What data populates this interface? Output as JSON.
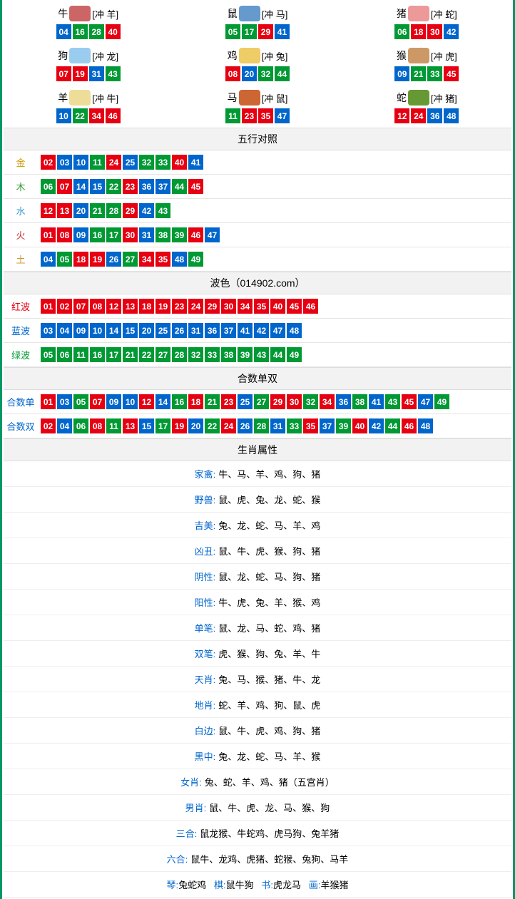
{
  "colors": {
    "red": "#e60012",
    "blue": "#0066cc",
    "green": "#009933",
    "gold": "#cc9900",
    "wood": "#339933",
    "water": "#3399cc",
    "fire": "#cc3333",
    "earth": "#cc9933",
    "redText": "#e60012",
    "blueText": "#0066cc",
    "greenText": "#009933"
  },
  "zodiac": [
    {
      "name": "牛",
      "vs": "[冲 羊]",
      "iconColor": "#cc6666",
      "balls": [
        {
          "n": "04",
          "c": "blue"
        },
        {
          "n": "16",
          "c": "green"
        },
        {
          "n": "28",
          "c": "green"
        },
        {
          "n": "40",
          "c": "red"
        }
      ]
    },
    {
      "name": "鼠",
      "vs": "[冲 马]",
      "iconColor": "#6699cc",
      "balls": [
        {
          "n": "05",
          "c": "green"
        },
        {
          "n": "17",
          "c": "green"
        },
        {
          "n": "29",
          "c": "red"
        },
        {
          "n": "41",
          "c": "blue"
        }
      ]
    },
    {
      "name": "猪",
      "vs": "[冲 蛇]",
      "iconColor": "#ee9999",
      "balls": [
        {
          "n": "06",
          "c": "green"
        },
        {
          "n": "18",
          "c": "red"
        },
        {
          "n": "30",
          "c": "red"
        },
        {
          "n": "42",
          "c": "blue"
        }
      ]
    },
    {
      "name": "狗",
      "vs": "[冲 龙]",
      "iconColor": "#99ccee",
      "balls": [
        {
          "n": "07",
          "c": "red"
        },
        {
          "n": "19",
          "c": "red"
        },
        {
          "n": "31",
          "c": "blue"
        },
        {
          "n": "43",
          "c": "green"
        }
      ]
    },
    {
      "name": "鸡",
      "vs": "[冲 兔]",
      "iconColor": "#eecc66",
      "balls": [
        {
          "n": "08",
          "c": "red"
        },
        {
          "n": "20",
          "c": "blue"
        },
        {
          "n": "32",
          "c": "green"
        },
        {
          "n": "44",
          "c": "green"
        }
      ]
    },
    {
      "name": "猴",
      "vs": "[冲 虎]",
      "iconColor": "#cc9966",
      "balls": [
        {
          "n": "09",
          "c": "blue"
        },
        {
          "n": "21",
          "c": "green"
        },
        {
          "n": "33",
          "c": "green"
        },
        {
          "n": "45",
          "c": "red"
        }
      ]
    },
    {
      "name": "羊",
      "vs": "[冲 牛]",
      "iconColor": "#eedd99",
      "balls": [
        {
          "n": "10",
          "c": "blue"
        },
        {
          "n": "22",
          "c": "green"
        },
        {
          "n": "34",
          "c": "red"
        },
        {
          "n": "46",
          "c": "red"
        }
      ]
    },
    {
      "name": "马",
      "vs": "[冲 鼠]",
      "iconColor": "#cc6633",
      "balls": [
        {
          "n": "11",
          "c": "green"
        },
        {
          "n": "23",
          "c": "red"
        },
        {
          "n": "35",
          "c": "red"
        },
        {
          "n": "47",
          "c": "blue"
        }
      ]
    },
    {
      "name": "蛇",
      "vs": "[冲 猪]",
      "iconColor": "#669933",
      "balls": [
        {
          "n": "12",
          "c": "red"
        },
        {
          "n": "24",
          "c": "red"
        },
        {
          "n": "36",
          "c": "blue"
        },
        {
          "n": "48",
          "c": "blue"
        }
      ]
    }
  ],
  "headers": {
    "wuxing": "五行对照",
    "bose": "波色（014902.com）",
    "heshu": "合数单双",
    "attr": "生肖属性"
  },
  "wuxing": [
    {
      "label": "金",
      "labelColor": "#cc9900",
      "balls": [
        {
          "n": "02",
          "c": "red"
        },
        {
          "n": "03",
          "c": "blue"
        },
        {
          "n": "10",
          "c": "blue"
        },
        {
          "n": "11",
          "c": "green"
        },
        {
          "n": "24",
          "c": "red"
        },
        {
          "n": "25",
          "c": "blue"
        },
        {
          "n": "32",
          "c": "green"
        },
        {
          "n": "33",
          "c": "green"
        },
        {
          "n": "40",
          "c": "red"
        },
        {
          "n": "41",
          "c": "blue"
        }
      ]
    },
    {
      "label": "木",
      "labelColor": "#339933",
      "balls": [
        {
          "n": "06",
          "c": "green"
        },
        {
          "n": "07",
          "c": "red"
        },
        {
          "n": "14",
          "c": "blue"
        },
        {
          "n": "15",
          "c": "blue"
        },
        {
          "n": "22",
          "c": "green"
        },
        {
          "n": "23",
          "c": "red"
        },
        {
          "n": "36",
          "c": "blue"
        },
        {
          "n": "37",
          "c": "blue"
        },
        {
          "n": "44",
          "c": "green"
        },
        {
          "n": "45",
          "c": "red"
        }
      ]
    },
    {
      "label": "水",
      "labelColor": "#3399cc",
      "balls": [
        {
          "n": "12",
          "c": "red"
        },
        {
          "n": "13",
          "c": "red"
        },
        {
          "n": "20",
          "c": "blue"
        },
        {
          "n": "21",
          "c": "green"
        },
        {
          "n": "28",
          "c": "green"
        },
        {
          "n": "29",
          "c": "red"
        },
        {
          "n": "42",
          "c": "blue"
        },
        {
          "n": "43",
          "c": "green"
        }
      ]
    },
    {
      "label": "火",
      "labelColor": "#cc3333",
      "balls": [
        {
          "n": "01",
          "c": "red"
        },
        {
          "n": "08",
          "c": "red"
        },
        {
          "n": "09",
          "c": "blue"
        },
        {
          "n": "16",
          "c": "green"
        },
        {
          "n": "17",
          "c": "green"
        },
        {
          "n": "30",
          "c": "red"
        },
        {
          "n": "31",
          "c": "blue"
        },
        {
          "n": "38",
          "c": "green"
        },
        {
          "n": "39",
          "c": "green"
        },
        {
          "n": "46",
          "c": "red"
        },
        {
          "n": "47",
          "c": "blue"
        }
      ]
    },
    {
      "label": "土",
      "labelColor": "#cc9933",
      "balls": [
        {
          "n": "04",
          "c": "blue"
        },
        {
          "n": "05",
          "c": "green"
        },
        {
          "n": "18",
          "c": "red"
        },
        {
          "n": "19",
          "c": "red"
        },
        {
          "n": "26",
          "c": "blue"
        },
        {
          "n": "27",
          "c": "green"
        },
        {
          "n": "34",
          "c": "red"
        },
        {
          "n": "35",
          "c": "red"
        },
        {
          "n": "48",
          "c": "blue"
        },
        {
          "n": "49",
          "c": "green"
        }
      ]
    }
  ],
  "bose": [
    {
      "label": "红波",
      "labelColor": "#e60012",
      "balls": [
        {
          "n": "01",
          "c": "red"
        },
        {
          "n": "02",
          "c": "red"
        },
        {
          "n": "07",
          "c": "red"
        },
        {
          "n": "08",
          "c": "red"
        },
        {
          "n": "12",
          "c": "red"
        },
        {
          "n": "13",
          "c": "red"
        },
        {
          "n": "18",
          "c": "red"
        },
        {
          "n": "19",
          "c": "red"
        },
        {
          "n": "23",
          "c": "red"
        },
        {
          "n": "24",
          "c": "red"
        },
        {
          "n": "29",
          "c": "red"
        },
        {
          "n": "30",
          "c": "red"
        },
        {
          "n": "34",
          "c": "red"
        },
        {
          "n": "35",
          "c": "red"
        },
        {
          "n": "40",
          "c": "red"
        },
        {
          "n": "45",
          "c": "red"
        },
        {
          "n": "46",
          "c": "red"
        }
      ]
    },
    {
      "label": "蓝波",
      "labelColor": "#0066cc",
      "balls": [
        {
          "n": "03",
          "c": "blue"
        },
        {
          "n": "04",
          "c": "blue"
        },
        {
          "n": "09",
          "c": "blue"
        },
        {
          "n": "10",
          "c": "blue"
        },
        {
          "n": "14",
          "c": "blue"
        },
        {
          "n": "15",
          "c": "blue"
        },
        {
          "n": "20",
          "c": "blue"
        },
        {
          "n": "25",
          "c": "blue"
        },
        {
          "n": "26",
          "c": "blue"
        },
        {
          "n": "31",
          "c": "blue"
        },
        {
          "n": "36",
          "c": "blue"
        },
        {
          "n": "37",
          "c": "blue"
        },
        {
          "n": "41",
          "c": "blue"
        },
        {
          "n": "42",
          "c": "blue"
        },
        {
          "n": "47",
          "c": "blue"
        },
        {
          "n": "48",
          "c": "blue"
        }
      ]
    },
    {
      "label": "绿波",
      "labelColor": "#009933",
      "balls": [
        {
          "n": "05",
          "c": "green"
        },
        {
          "n": "06",
          "c": "green"
        },
        {
          "n": "11",
          "c": "green"
        },
        {
          "n": "16",
          "c": "green"
        },
        {
          "n": "17",
          "c": "green"
        },
        {
          "n": "21",
          "c": "green"
        },
        {
          "n": "22",
          "c": "green"
        },
        {
          "n": "27",
          "c": "green"
        },
        {
          "n": "28",
          "c": "green"
        },
        {
          "n": "32",
          "c": "green"
        },
        {
          "n": "33",
          "c": "green"
        },
        {
          "n": "38",
          "c": "green"
        },
        {
          "n": "39",
          "c": "green"
        },
        {
          "n": "43",
          "c": "green"
        },
        {
          "n": "44",
          "c": "green"
        },
        {
          "n": "49",
          "c": "green"
        }
      ]
    }
  ],
  "heshu": [
    {
      "label": "合数单",
      "labelColor": "#0066cc",
      "balls": [
        {
          "n": "01",
          "c": "red"
        },
        {
          "n": "03",
          "c": "blue"
        },
        {
          "n": "05",
          "c": "green"
        },
        {
          "n": "07",
          "c": "red"
        },
        {
          "n": "09",
          "c": "blue"
        },
        {
          "n": "10",
          "c": "blue"
        },
        {
          "n": "12",
          "c": "red"
        },
        {
          "n": "14",
          "c": "blue"
        },
        {
          "n": "16",
          "c": "green"
        },
        {
          "n": "18",
          "c": "red"
        },
        {
          "n": "21",
          "c": "green"
        },
        {
          "n": "23",
          "c": "red"
        },
        {
          "n": "25",
          "c": "blue"
        },
        {
          "n": "27",
          "c": "green"
        },
        {
          "n": "29",
          "c": "red"
        },
        {
          "n": "30",
          "c": "red"
        },
        {
          "n": "32",
          "c": "green"
        },
        {
          "n": "34",
          "c": "red"
        },
        {
          "n": "36",
          "c": "blue"
        },
        {
          "n": "38",
          "c": "green"
        },
        {
          "n": "41",
          "c": "blue"
        },
        {
          "n": "43",
          "c": "green"
        },
        {
          "n": "45",
          "c": "red"
        },
        {
          "n": "47",
          "c": "blue"
        },
        {
          "n": "49",
          "c": "green"
        }
      ]
    },
    {
      "label": "合数双",
      "labelColor": "#0066cc",
      "balls": [
        {
          "n": "02",
          "c": "red"
        },
        {
          "n": "04",
          "c": "blue"
        },
        {
          "n": "06",
          "c": "green"
        },
        {
          "n": "08",
          "c": "red"
        },
        {
          "n": "11",
          "c": "green"
        },
        {
          "n": "13",
          "c": "red"
        },
        {
          "n": "15",
          "c": "blue"
        },
        {
          "n": "17",
          "c": "green"
        },
        {
          "n": "19",
          "c": "red"
        },
        {
          "n": "20",
          "c": "blue"
        },
        {
          "n": "22",
          "c": "green"
        },
        {
          "n": "24",
          "c": "red"
        },
        {
          "n": "26",
          "c": "blue"
        },
        {
          "n": "28",
          "c": "green"
        },
        {
          "n": "31",
          "c": "blue"
        },
        {
          "n": "33",
          "c": "green"
        },
        {
          "n": "35",
          "c": "red"
        },
        {
          "n": "37",
          "c": "blue"
        },
        {
          "n": "39",
          "c": "green"
        },
        {
          "n": "40",
          "c": "red"
        },
        {
          "n": "42",
          "c": "blue"
        },
        {
          "n": "44",
          "c": "green"
        },
        {
          "n": "46",
          "c": "red"
        },
        {
          "n": "48",
          "c": "blue"
        }
      ]
    }
  ],
  "attrs": [
    {
      "label": "家禽:",
      "labelColor": "#0066cc",
      "text": "牛、马、羊、鸡、狗、猪"
    },
    {
      "label": "野兽:",
      "labelColor": "#0066cc",
      "text": "鼠、虎、兔、龙、蛇、猴"
    },
    {
      "label": "吉美:",
      "labelColor": "#0066cc",
      "text": "兔、龙、蛇、马、羊、鸡"
    },
    {
      "label": "凶丑:",
      "labelColor": "#0066cc",
      "text": "鼠、牛、虎、猴、狗、猪"
    },
    {
      "label": "阴性:",
      "labelColor": "#0066cc",
      "text": "鼠、龙、蛇、马、狗、猪"
    },
    {
      "label": "阳性:",
      "labelColor": "#0066cc",
      "text": "牛、虎、兔、羊、猴、鸡"
    },
    {
      "label": "单笔:",
      "labelColor": "#0066cc",
      "text": "鼠、龙、马、蛇、鸡、猪"
    },
    {
      "label": "双笔:",
      "labelColor": "#0066cc",
      "text": "虎、猴、狗、兔、羊、牛"
    },
    {
      "label": "天肖:",
      "labelColor": "#0066cc",
      "text": "兔、马、猴、猪、牛、龙"
    },
    {
      "label": "地肖:",
      "labelColor": "#0066cc",
      "text": "蛇、羊、鸡、狗、鼠、虎"
    },
    {
      "label": "白边:",
      "labelColor": "#0066cc",
      "text": "鼠、牛、虎、鸡、狗、猪"
    },
    {
      "label": "黑中:",
      "labelColor": "#0066cc",
      "text": "兔、龙、蛇、马、羊、猴"
    },
    {
      "label": "女肖:",
      "labelColor": "#0066cc",
      "text": "兔、蛇、羊、鸡、猪（五宫肖）"
    },
    {
      "label": "男肖:",
      "labelColor": "#0066cc",
      "text": "鼠、牛、虎、龙、马、猴、狗"
    },
    {
      "label": "三合:",
      "labelColor": "#0066cc",
      "text": "鼠龙猴、牛蛇鸡、虎马狗、兔羊猪"
    },
    {
      "label": "六合:",
      "labelColor": "#0066cc",
      "text": "鼠牛、龙鸡、虎猪、蛇猴、兔狗、马羊"
    }
  ],
  "footer": {
    "parts": [
      {
        "label": "琴:",
        "labelColor": "#0066cc",
        "text": "兔蛇鸡"
      },
      {
        "label": "棋:",
        "labelColor": "#0066cc",
        "text": "鼠牛狗"
      },
      {
        "label": "书:",
        "labelColor": "#0066cc",
        "text": "虎龙马"
      },
      {
        "label": "画:",
        "labelColor": "#0066cc",
        "text": "羊猴猪"
      }
    ]
  }
}
